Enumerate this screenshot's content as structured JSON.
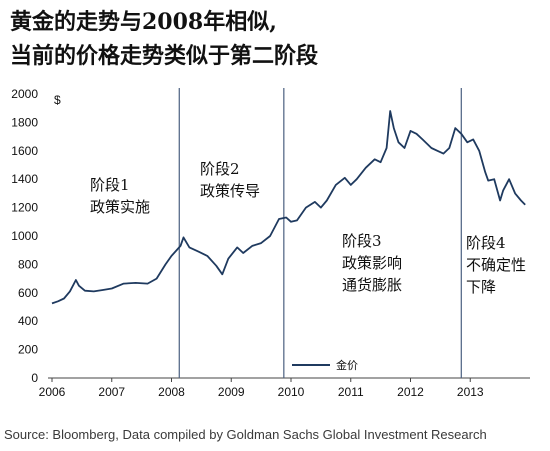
{
  "title_line1": "黄金的走势与2008年相似,",
  "title_line2": "当前的价格走势类似于第二阶段",
  "source": "Source: Bloomberg, Data compiled by Goldman Sachs Global Investment Research",
  "chart_data": {
    "type": "line",
    "ylabel": "$",
    "ylim": [
      0,
      2000
    ],
    "yticks": [
      0,
      200,
      400,
      600,
      800,
      1000,
      1200,
      1400,
      1600,
      1800,
      2000
    ],
    "xlim": [
      2006.0,
      2014.0
    ],
    "xticks": [
      "2006",
      "2007",
      "2008",
      "2009",
      "2010",
      "2011",
      "2012",
      "2013"
    ],
    "grid": false,
    "legend_position": "bottom-center",
    "series": [
      {
        "name": "金价",
        "color": "#1f3a5f",
        "x": [
          2006.0,
          2006.1,
          2006.2,
          2006.3,
          2006.4,
          2006.45,
          2006.55,
          2006.7,
          2006.85,
          2007.0,
          2007.2,
          2007.4,
          2007.6,
          2007.75,
          2007.9,
          2008.0,
          2008.15,
          2008.2,
          2008.3,
          2008.45,
          2008.6,
          2008.75,
          2008.85,
          2008.95,
          2009.1,
          2009.2,
          2009.35,
          2009.5,
          2009.65,
          2009.8,
          2009.92,
          2010.0,
          2010.1,
          2010.25,
          2010.4,
          2010.5,
          2010.6,
          2010.75,
          2010.9,
          2011.0,
          2011.1,
          2011.25,
          2011.4,
          2011.5,
          2011.6,
          2011.66,
          2011.72,
          2011.8,
          2011.9,
          2012.0,
          2012.1,
          2012.2,
          2012.35,
          2012.45,
          2012.55,
          2012.65,
          2012.75,
          2012.85,
          2012.95,
          2013.05,
          2013.15,
          2013.25,
          2013.3,
          2013.4,
          2013.5,
          2013.55,
          2013.65,
          2013.75,
          2013.85,
          2013.92
        ],
        "values": [
          525,
          540,
          560,
          610,
          690,
          650,
          615,
          610,
          620,
          630,
          665,
          670,
          665,
          700,
          800,
          860,
          930,
          990,
          920,
          890,
          860,
          790,
          730,
          840,
          920,
          880,
          930,
          950,
          1000,
          1120,
          1130,
          1100,
          1110,
          1200,
          1240,
          1200,
          1250,
          1360,
          1410,
          1360,
          1400,
          1480,
          1540,
          1520,
          1620,
          1880,
          1760,
          1660,
          1620,
          1740,
          1720,
          1680,
          1620,
          1600,
          1580,
          1620,
          1760,
          1720,
          1660,
          1680,
          1600,
          1450,
          1390,
          1400,
          1250,
          1320,
          1400,
          1300,
          1250,
          1220
        ]
      }
    ],
    "phases": [
      {
        "label_lines": [
          "阶段1",
          "政策实施"
        ],
        "divider_at": 2008.13
      },
      {
        "label_lines": [
          "阶段2",
          "政策传导"
        ],
        "divider_at": 2009.88
      },
      {
        "label_lines": [
          "阶段3",
          "政策影响",
          "通货膨胀"
        ],
        "divider_at": 2012.85
      },
      {
        "label_lines": [
          "阶段4",
          "不确定性",
          "下降"
        ],
        "divider_at": null
      }
    ]
  }
}
